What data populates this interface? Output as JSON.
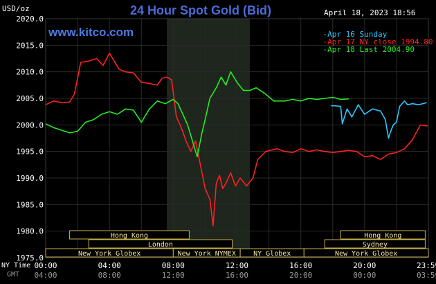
{
  "header": {
    "unit": "USD/oz",
    "title": "24 Hour Spot Gold (Bid)",
    "datetime": "April 18, 2023 18:56",
    "site": "www.kitco.com"
  },
  "colors": {
    "background": "#000000",
    "grid": "#2a2a2a",
    "shade": "#1e261e",
    "axis_text": "#ffffff",
    "axis_text_dim": "#9a9a9a",
    "title": "#4a6bd8",
    "site": "#4a7ae0",
    "series_apr16": "#2ec7ff",
    "series_apr17": "#ff2020",
    "series_apr18": "#22ee22",
    "session_fill": "#000000",
    "session_border": "#c9b04a",
    "session_text": "#f2e6a6"
  },
  "chart_data": {
    "type": "line",
    "title": "24 Hour Spot Gold (Bid)",
    "ylabel": "USD/oz",
    "ylim": [
      1975.0,
      2020.0
    ],
    "xlim": [
      0,
      24
    ],
    "yticks": [
      "2020.0",
      "2015.0",
      "2010.0",
      "2005.0",
      "2000.0",
      "1995.0",
      "1990.0",
      "1985.0",
      "1980.0",
      "1975.0"
    ],
    "ytick_values": [
      2020,
      2015,
      2010,
      2005,
      2000,
      1995,
      1990,
      1985,
      1980,
      1975
    ],
    "x_axis": {
      "row1_label": "NY Time",
      "row2_label": "GMT",
      "ny_ticks": [
        "00:00",
        "04:00",
        "08:00",
        "12:00",
        "16:00",
        "20:00",
        "23:59"
      ],
      "gmt_ticks": [
        "04:00",
        "08:00",
        "12:00",
        "16:00",
        "20:00",
        "00:00",
        "03:59"
      ],
      "tick_hours": [
        0,
        4,
        8,
        12,
        16,
        20,
        23.983
      ]
    },
    "shaded_hours": [
      7.6,
      12.8
    ],
    "legend": {
      "position": "top-right",
      "items": [
        {
          "label": "Apr 16 Sunday",
          "color": "#2ec7ff"
        },
        {
          "label": "Apr 17 NY close 1994.80",
          "color": "#ff2020"
        },
        {
          "label": "Apr 18 Last 2004.90",
          "color": "#22ee22"
        }
      ]
    },
    "series": [
      {
        "name": "Apr 16 Sunday",
        "color": "#2ec7ff",
        "x": [
          17.9,
          18.1,
          18.5,
          18.6,
          18.9,
          19.2,
          19.6,
          20.0,
          20.5,
          21.0,
          21.3,
          21.5,
          21.6,
          21.8,
          22.0,
          22.2,
          22.5,
          22.7,
          23.0,
          23.4,
          23.9
        ],
        "y": [
          2003.6,
          2003.6,
          2003.5,
          2000.2,
          2003.0,
          2001.5,
          2003.8,
          2002.0,
          2003.0,
          2002.6,
          2001.0,
          1997.5,
          1998.5,
          2000.0,
          2000.5,
          2003.5,
          2004.5,
          2003.8,
          2004.0,
          2003.8,
          2004.2
        ]
      },
      {
        "name": "Apr 17 NY close 1994.80",
        "color": "#ff2020",
        "x": [
          0,
          0.5,
          1.0,
          1.5,
          1.8,
          2.2,
          2.7,
          3.2,
          3.6,
          4.0,
          4.3,
          4.6,
          5.0,
          5.5,
          6.0,
          6.5,
          7.0,
          7.3,
          7.6,
          7.9,
          8.2,
          8.5,
          8.8,
          9.1,
          9.4,
          9.7,
          10.0,
          10.3,
          10.5,
          10.7,
          10.9,
          11.1,
          11.3,
          11.6,
          11.9,
          12.2,
          12.6,
          13.0,
          13.3,
          13.8,
          14.5,
          15.0,
          15.5,
          16.0,
          16.5,
          17.0,
          17.5,
          18.0,
          18.5,
          19.0,
          19.5,
          20.0,
          20.5,
          21.0,
          21.5,
          22.0,
          22.5,
          23.0,
          23.5,
          23.95
        ],
        "y": [
          2003.8,
          2004.5,
          2004.2,
          2004.3,
          2005.8,
          2011.8,
          2012.0,
          2012.5,
          2011.2,
          2013.5,
          2012.0,
          2010.5,
          2010.0,
          2009.8,
          2008.0,
          2007.8,
          2007.5,
          2008.8,
          2009.0,
          2008.5,
          2001.5,
          1999.5,
          1997.0,
          1995.0,
          1997.0,
          1992.5,
          1988.0,
          1986.0,
          1981.0,
          1989.0,
          1990.5,
          1988.0,
          1989.0,
          1991.0,
          1988.5,
          1990.0,
          1988.5,
          1990.0,
          1993.5,
          1995.0,
          1995.5,
          1995.0,
          1994.8,
          1995.5,
          1995.0,
          1995.3,
          1995.0,
          1994.8,
          1995.0,
          1995.2,
          1995.0,
          1994.0,
          1994.2,
          1993.5,
          1994.5,
          1994.8,
          1995.5,
          1997.2,
          2000.0,
          1999.8
        ]
      },
      {
        "name": "Apr 18 Last 2004.90",
        "color": "#22ee22",
        "x": [
          0,
          0.5,
          1.0,
          1.5,
          2.0,
          2.5,
          3.0,
          3.5,
          4.0,
          4.5,
          5.0,
          5.5,
          6.0,
          6.5,
          7.0,
          7.5,
          8.0,
          8.3,
          8.6,
          8.9,
          9.2,
          9.5,
          9.8,
          10.0,
          10.3,
          10.7,
          11.0,
          11.3,
          11.6,
          12.0,
          12.4,
          12.8,
          13.2,
          13.7,
          14.3,
          15.0,
          15.5,
          16.0,
          16.5,
          17.0,
          17.5,
          18.0,
          18.5,
          19.0
        ],
        "y": [
          2000.2,
          1999.5,
          1999.0,
          1998.5,
          1998.8,
          2000.5,
          2001.0,
          2002.0,
          2002.5,
          2002.0,
          2003.0,
          2002.8,
          2000.5,
          2003.0,
          2004.5,
          2004.0,
          2004.8,
          2004.0,
          2002.0,
          2000.0,
          1997.0,
          1994.0,
          1998.5,
          2001.0,
          2005.0,
          2007.0,
          2009.0,
          2007.5,
          2010.0,
          2008.0,
          2006.5,
          2006.5,
          2007.0,
          2006.0,
          2004.5,
          2004.5,
          2004.8,
          2004.5,
          2005.0,
          2004.8,
          2005.0,
          2005.2,
          2004.8,
          2004.9
        ]
      }
    ],
    "sessions": {
      "rows": [
        [
          {
            "label": "Hong Kong",
            "start": 1.5,
            "end": 9.0
          },
          {
            "label": "Hong Kong",
            "start": 18.5,
            "end": 23.8
          }
        ],
        [
          {
            "label": "London",
            "start": 2.7,
            "end": 11.7
          },
          {
            "label": "Sydney",
            "start": 17.5,
            "end": 23.8
          }
        ],
        [
          {
            "label": "New York Globex",
            "start": 0,
            "end": 8.0
          },
          {
            "label": "New York NYMEX",
            "start": 8.0,
            "end": 12.2
          },
          {
            "label": "NY Globex",
            "start": 12.2,
            "end": 16.2
          },
          {
            "label": "New York Globex",
            "start": 16.2,
            "end": 24.0
          }
        ]
      ]
    }
  }
}
